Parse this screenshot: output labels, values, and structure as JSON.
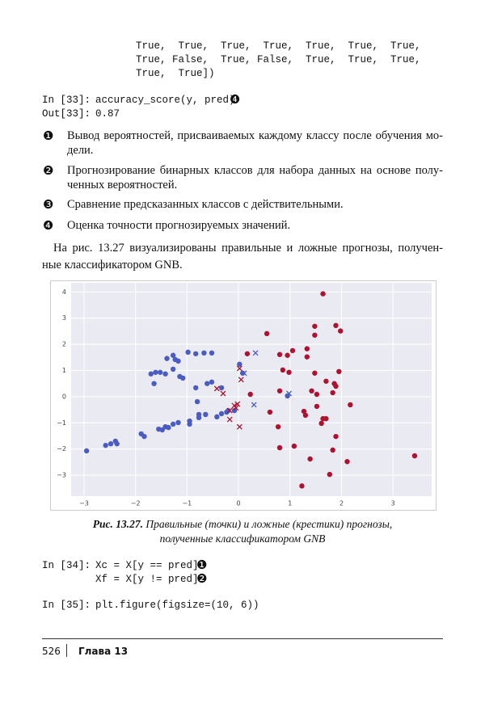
{
  "code_top": {
    "lines": [
      "True,  True,  True,  True,  True,  True,  True,",
      "True, False,  True, False,  True,  True,  True,",
      "True,  True])"
    ]
  },
  "code_33": {
    "in_prompt": "In [33]:",
    "code": "accuracy_score(y, pred)",
    "marker": "❹",
    "out_prompt": "Out[33]:",
    "output": "0.87"
  },
  "notes": [
    {
      "marker": "❶",
      "lines": [
        "Вывод вероятностей, присваиваемых каждому классу после обучения мо-",
        "дели."
      ]
    },
    {
      "marker": "❷",
      "lines": [
        "Прогнозирование бинарных классов для набора данных на основе полу-",
        "ченных вероятностей."
      ]
    },
    {
      "marker": "❸",
      "lines": [
        "Сравнение предсказанных классов с действительными."
      ]
    },
    {
      "marker": "❹",
      "lines": [
        "Оценка точности прогнозируемых значений."
      ]
    }
  ],
  "paragraph": {
    "lines": [
      "На рис. 13.27 визуализированы правильные и ложные прогнозы, получен-",
      "ные классификатором GNB."
    ]
  },
  "chart_data": {
    "type": "scatter",
    "xlim": [
      -3.25,
      3.75
    ],
    "ylim": [
      -3.8,
      4.35
    ],
    "xticks": [
      {
        "value": -3,
        "label": "−3"
      },
      {
        "value": -2,
        "label": "−2"
      },
      {
        "value": -1,
        "label": "−1"
      },
      0,
      1,
      2,
      3
    ],
    "yticks": [
      {
        "value": -3,
        "label": "−3"
      },
      {
        "value": -2,
        "label": "−2"
      },
      {
        "value": -1,
        "label": "−1"
      },
      0,
      1,
      2,
      3,
      4
    ],
    "grid": true,
    "series": [
      {
        "color": "#4a5cc0",
        "marker": "o",
        "x": [
          -2.95,
          -2.58,
          -2.48,
          -2.39,
          -2.36,
          -1.89,
          -1.83,
          -1.55,
          -1.48,
          -1.42,
          -1.36,
          -1.27,
          -1.17,
          -0.95,
          -0.95,
          -0.77,
          -0.77,
          -0.64,
          -0.42,
          -0.33,
          -0.23,
          -0.2,
          -0.08,
          -0.8,
          -0.61,
          -0.52,
          -0.33,
          -1.7,
          -1.64,
          -1.61,
          -1.52,
          -1.42,
          -1.27,
          -1.14,
          -1.08,
          -1.39,
          -1.27,
          -1.23,
          -1.17,
          -0.98,
          -0.83,
          -0.67,
          -0.52,
          0.02,
          0.08,
          0.95,
          -0.83
        ],
        "values": [
          -2.07,
          -1.86,
          -1.8,
          -1.7,
          -1.8,
          -1.42,
          -1.52,
          -1.24,
          -1.27,
          -1.15,
          -1.18,
          -1.05,
          -0.99,
          -0.93,
          -1.05,
          -0.8,
          -0.68,
          -0.68,
          -0.77,
          -0.65,
          -0.59,
          -0.53,
          -0.53,
          -0.19,
          0.5,
          0.56,
          0.34,
          0.87,
          0.5,
          0.93,
          0.93,
          0.87,
          1.05,
          0.77,
          0.71,
          1.46,
          1.58,
          1.42,
          1.36,
          1.7,
          1.64,
          1.67,
          1.67,
          1.24,
          0.9,
          0.03,
          0.34
        ]
      },
      {
        "color": "#b0112e",
        "marker": "o",
        "x": [
          0.55,
          0.8,
          0.86,
          1.05,
          1.48,
          1.48,
          1.33,
          1.48,
          1.64,
          1.89,
          1.98,
          1.33,
          1.95,
          1.7,
          1.86,
          1.89,
          1.83,
          2.17,
          0.95,
          0.98,
          0.8,
          1.42,
          1.52,
          0.61,
          0.77,
          0.8,
          1.08,
          1.27,
          1.3,
          1.52,
          1.64,
          1.61,
          1.7,
          1.83,
          1.89,
          2.11,
          1.39,
          1.77,
          1.23,
          3.42,
          0.17,
          0.23
        ],
        "values": [
          2.41,
          1.61,
          1.02,
          1.76,
          2.69,
          2.35,
          1.52,
          0.9,
          3.93,
          2.72,
          2.51,
          1.83,
          0.96,
          0.59,
          0.5,
          0.4,
          0.15,
          -0.31,
          1.58,
          0.93,
          0.22,
          0.22,
          0.09,
          -0.59,
          -1.15,
          -1.95,
          -1.89,
          -0.56,
          -0.71,
          -0.37,
          -0.84,
          -1.02,
          -0.84,
          -2.04,
          -1.52,
          -2.48,
          -2.38,
          -2.97,
          -3.41,
          -2.26,
          1.64,
          0.09
        ]
      },
      {
        "color": "#4a5cc0",
        "marker": "x",
        "x": [
          0.33,
          0.11,
          0.3,
          0.98
        ],
        "values": [
          1.67,
          0.9,
          -0.31,
          0.12
        ]
      },
      {
        "color": "#b0112e",
        "marker": "x",
        "x": [
          -0.42,
          -0.3,
          0.02,
          0.05,
          -0.02,
          -0.05,
          -0.17,
          -0.17,
          0.02,
          -0.08
        ],
        "values": [
          0.31,
          0.12,
          1.08,
          0.65,
          -0.28,
          -0.43,
          -0.53,
          -0.87,
          -1.15,
          -0.34
        ]
      }
    ]
  },
  "caption": {
    "label": "Рис. 13.27.",
    "lines": [
      "Правильные (точки) и ложные (крестики) прогнозы,",
      "полученные классификатором GNB"
    ]
  },
  "code_34": {
    "in_prompt": "In [34]:",
    "lines": [
      {
        "code": "Xc = X[y == pred]",
        "marker": "❶"
      },
      {
        "code": "Xf = X[y != pred]",
        "marker": "❷"
      }
    ]
  },
  "code_35": {
    "in_prompt": "In [35]:",
    "code": "plt.figure(figsize=(10, 6))"
  },
  "footer": {
    "page": "526",
    "chapter": "Глава 13"
  }
}
